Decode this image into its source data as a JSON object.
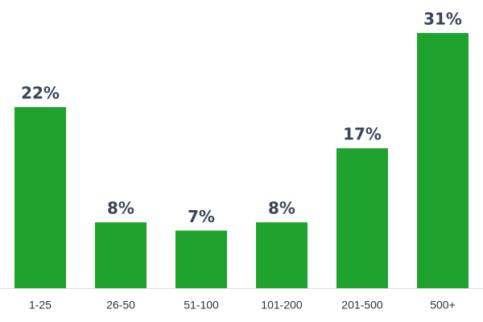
{
  "chart_data": {
    "type": "bar",
    "categories": [
      "1-25",
      "26-50",
      "51-100",
      "101-200",
      "201-500",
      "500+"
    ],
    "values": [
      22,
      8,
      7,
      8,
      17,
      31
    ],
    "value_labels": [
      "22%",
      "8%",
      "7%",
      "8%",
      "17%",
      "31%"
    ],
    "color": "#1fa32e"
  }
}
